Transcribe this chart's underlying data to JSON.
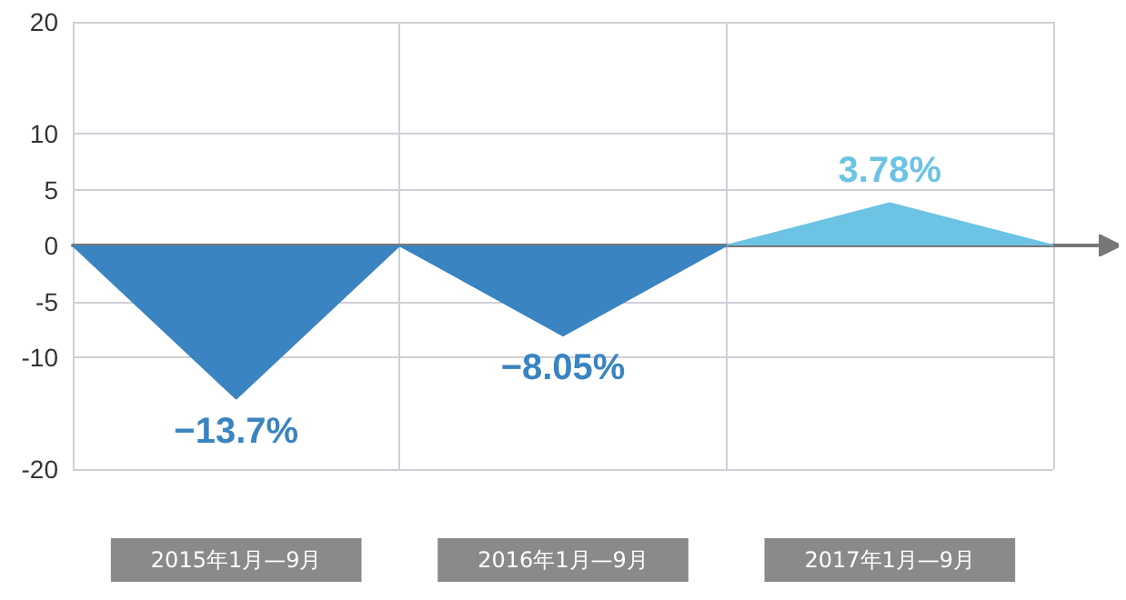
{
  "chart_data": {
    "type": "area",
    "categories": [
      null,
      "2015年1月—9月",
      null,
      "2016年1月—9月",
      null,
      "2017年1月—9月",
      null
    ],
    "series": [
      {
        "color": "#3a84c1",
        "values": [
          0,
          -13.7,
          0,
          -8.05,
          0,
          null,
          null
        ],
        "value_labels": [
          null,
          "−13.7%",
          null,
          "−8.05%",
          null,
          null,
          null
        ]
      },
      {
        "color": "#6cc3e4",
        "values": [
          null,
          null,
          null,
          null,
          0,
          3.78,
          0
        ],
        "value_labels": [
          null,
          null,
          null,
          null,
          null,
          "3.78%",
          null
        ]
      }
    ],
    "ylim": [
      -20,
      20
    ],
    "yticks": [
      20,
      10,
      5,
      0,
      -5,
      -10,
      -20
    ],
    "grid": true
  }
}
